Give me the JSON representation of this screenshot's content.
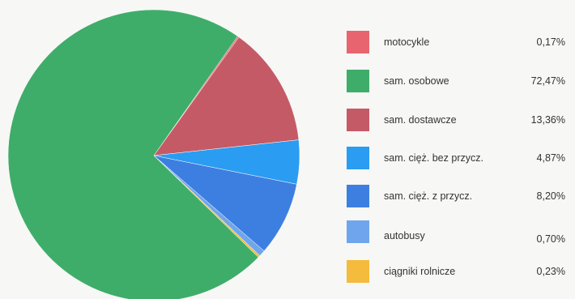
{
  "chart_data": {
    "type": "pie",
    "title": "",
    "legend_position": "right",
    "slices": [
      {
        "label": "motocykle",
        "value": 0.17,
        "value_text": "0,17%",
        "color": "#e8656f"
      },
      {
        "label": "sam. osobowe",
        "value": 72.47,
        "value_text": "72,47%",
        "color": "#3fad6a"
      },
      {
        "label": "sam. dostawcze",
        "value": 13.36,
        "value_text": "13,36%",
        "color": "#c55a67"
      },
      {
        "label": "sam. cięż. bez przycz.",
        "value": 4.87,
        "value_text": "4,87%",
        "color": "#2a9cf2"
      },
      {
        "label": "sam. cięż. z przycz.",
        "value": 8.2,
        "value_text": "8,20%",
        "color": "#3d7fe0"
      },
      {
        "label": "autobusy",
        "value": 0.7,
        "value_text": "0,70%",
        "color": "#6fa5ec"
      },
      {
        "label": "ciągniki rolnicze",
        "value": 0.23,
        "value_text": "0,23%",
        "color": "#f5bb3c"
      }
    ]
  }
}
